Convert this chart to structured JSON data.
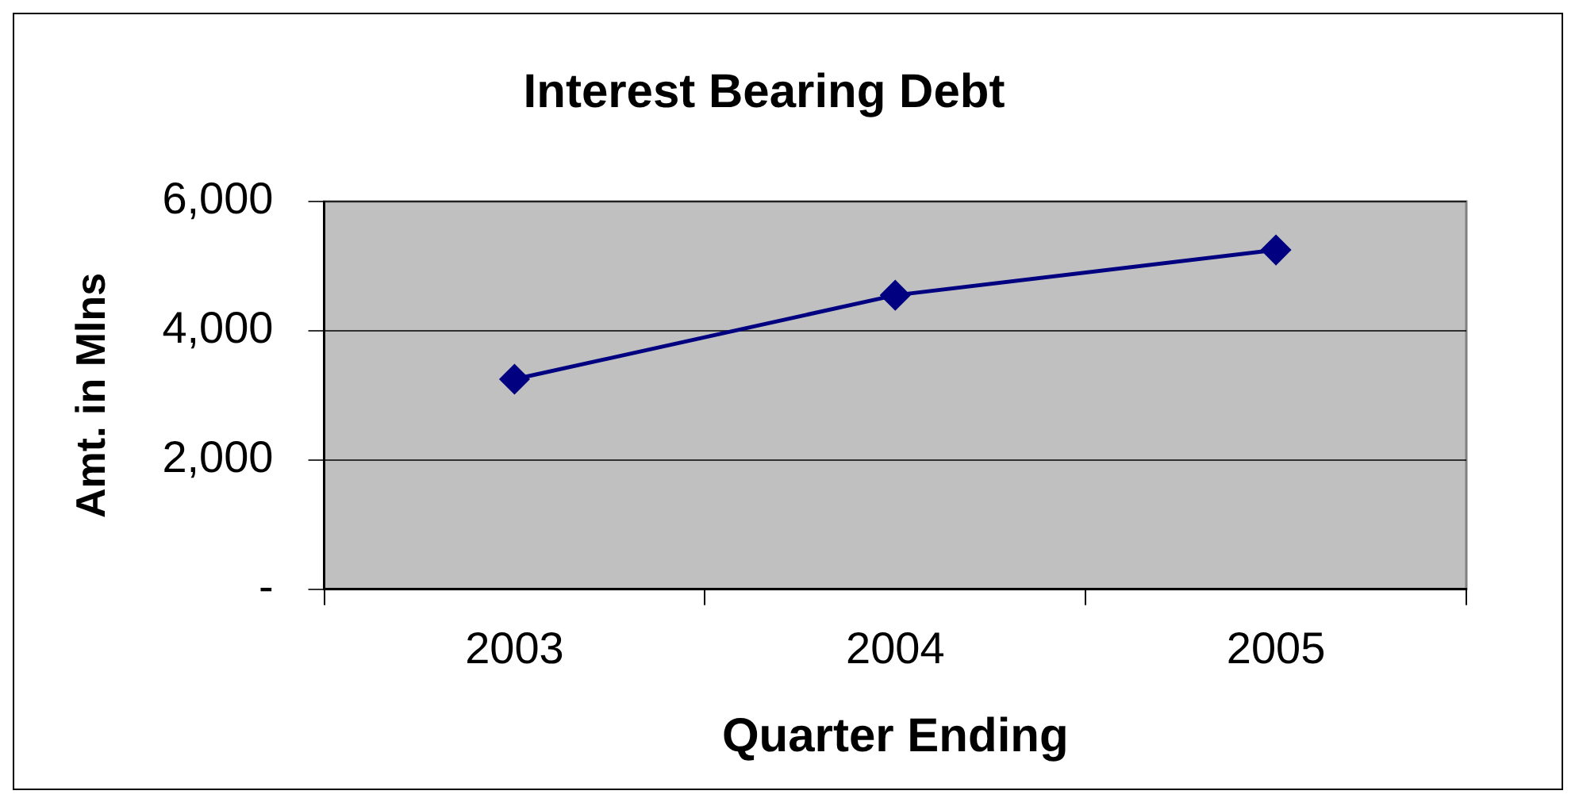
{
  "chart_data": {
    "type": "line",
    "title": "Interest Bearing Debt",
    "xlabel": "Quarter Ending",
    "ylabel": "Amt. in Mlns",
    "categories": [
      "2003",
      "2004",
      "2005"
    ],
    "series": [
      {
        "color": "#000080",
        "values": [
          3250,
          4550,
          5250
        ]
      }
    ],
    "ylim": [
      0,
      6000
    ],
    "yticks": [
      {
        "value": 0,
        "label": "-"
      },
      {
        "value": 2000,
        "label": "2,000"
      },
      {
        "value": 4000,
        "label": "4,000"
      },
      {
        "value": 6000,
        "label": "6,000"
      }
    ],
    "grid": "y",
    "legend": false,
    "marker": "diamond",
    "line_style": "solid"
  }
}
